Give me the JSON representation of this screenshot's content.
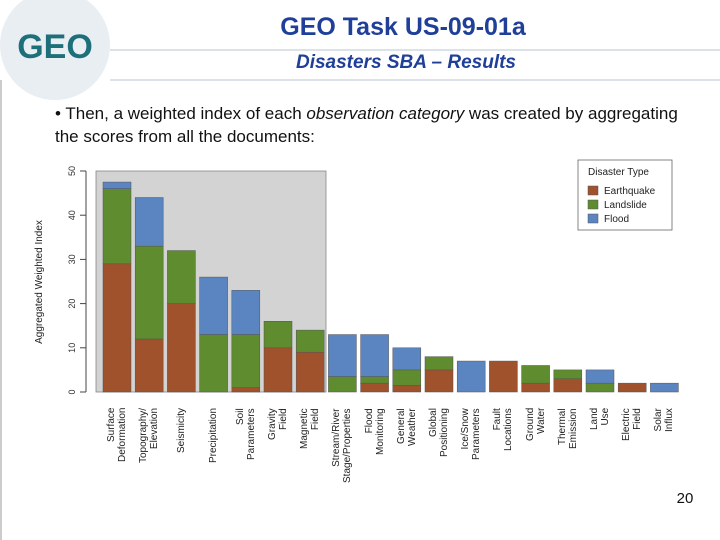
{
  "slide": {
    "title": "GEO Task US-09-01a",
    "subtitle": "Disasters SBA – Results",
    "bullet": [
      "Then, a weighted index of each ",
      "observation category",
      " was created by aggregating the scores from all the documents:"
    ],
    "page_number": "20",
    "logo": "GEO"
  },
  "chart_data": {
    "type": "stacked_bar",
    "y_label": "Aggregated Weighted Index",
    "legend_title": "Disaster Type",
    "legend": "upper right",
    "categories": [
      "Surface\nDeformation",
      "Topography/\nElevation",
      "Seismicity",
      "Precipitation",
      "Soil\nParameters",
      "Gravity\nField",
      "Magnetic\nField",
      "Stream/River\nStage/Properties",
      "Flood\nMonitoring",
      "General\nWeather",
      "Global\nPositioning",
      "Ice/Snow\nParameters",
      "Fault\nLocations",
      "Ground\nWater",
      "Thermal\nEmission",
      "Land\nUse",
      "Electric\nField",
      "Solar\nInflux"
    ],
    "series": [
      {
        "name": "Earthquake",
        "color": "#a0522d",
        "values": [
          29,
          12,
          20,
          0,
          1,
          10,
          9,
          0,
          2,
          1.5,
          5,
          0,
          7,
          2,
          3,
          0,
          2,
          0
        ]
      },
      {
        "name": "Landslide",
        "color": "#5e8c2e",
        "values": [
          17,
          21,
          12,
          13,
          12,
          6,
          5,
          3.5,
          1.5,
          3.5,
          3,
          0,
          0,
          4,
          2,
          2,
          0,
          0
        ]
      },
      {
        "name": "Flood",
        "color": "#5b85c0",
        "values": [
          1.5,
          11,
          0,
          13,
          10,
          0,
          0,
          9.5,
          9.5,
          5,
          0,
          7,
          0,
          0,
          0,
          3,
          0,
          2
        ]
      }
    ],
    "ylim": [
      0,
      50
    ],
    "yticks": [
      0,
      10,
      20,
      30,
      40,
      50
    ]
  }
}
